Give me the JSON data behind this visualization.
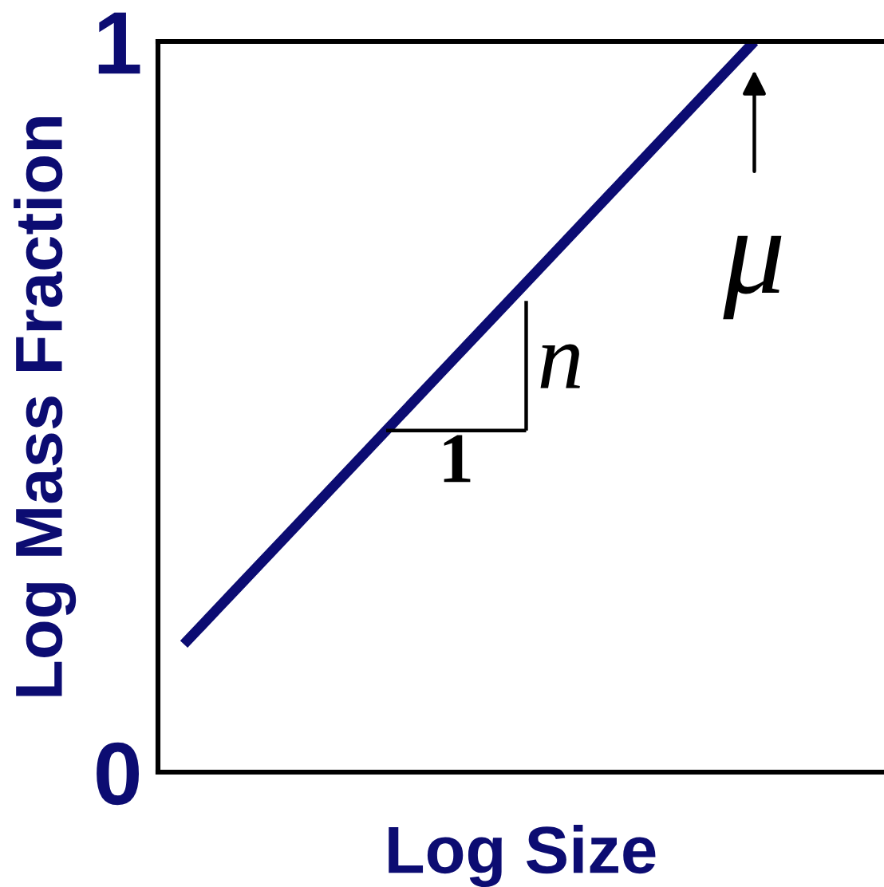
{
  "chart_data": {
    "type": "line",
    "xlabel": "Log Size",
    "ylabel": "Log Mass Fraction",
    "categories": [
      null,
      null,
      null,
      null,
      null,
      null,
      null,
      null,
      null,
      null,
      null,
      null,
      null,
      null
    ],
    "series": [
      {
        "color": "#0c0c72",
        "values": [
          0.175,
          0.25,
          0.325,
          0.4,
          0.475,
          0.55,
          0.625,
          0.7,
          0.775,
          0.85,
          0.925,
          1.0,
          null,
          null
        ]
      }
    ],
    "ylim": [
      0,
      1
    ],
    "yticks": [
      0,
      1
    ],
    "annotations": [
      "n",
      "1",
      {
        "text": "μ",
        "y": 1
      }
    ]
  }
}
